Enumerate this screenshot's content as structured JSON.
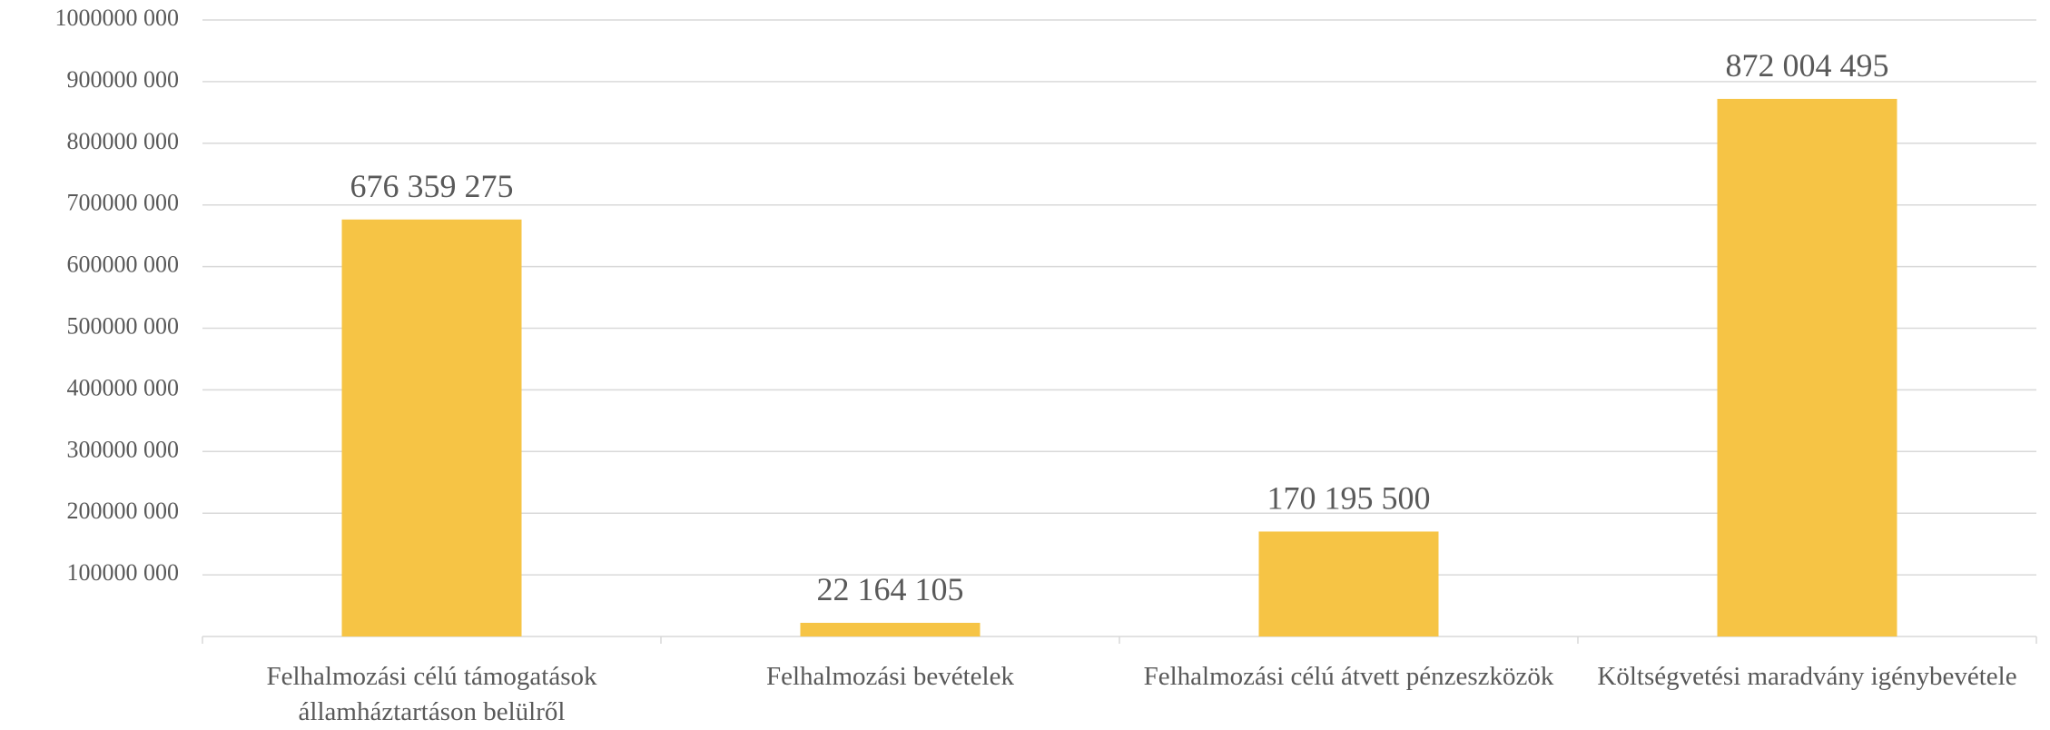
{
  "chart_data": {
    "type": "bar",
    "categories": [
      "Felhalmozási célú támogatások államháztartáson belülről",
      "Felhalmozási bevételek",
      "Felhalmozási célú átvett pénzeszközök",
      "Költségvetési maradvány igénybevétele"
    ],
    "values": [
      676359275,
      22164105,
      170195500,
      872004495
    ],
    "value_labels": [
      "676 359 275",
      "22 164 105",
      "170 195 500",
      "872 004 495"
    ],
    "color": "#f6c445",
    "ylim": [
      0,
      1000000000
    ],
    "yticks": [
      {
        "value": 100000000,
        "label": "100000 000"
      },
      {
        "value": 200000000,
        "label": "200000 000"
      },
      {
        "value": 300000000,
        "label": "300000 000"
      },
      {
        "value": 400000000,
        "label": "400000 000"
      },
      {
        "value": 500000000,
        "label": "500000 000"
      },
      {
        "value": 600000000,
        "label": "600000 000"
      },
      {
        "value": 700000000,
        "label": "700000 000"
      },
      {
        "value": 800000000,
        "label": "800000 000"
      },
      {
        "value": 900000000,
        "label": "900000 000"
      },
      {
        "value": 1000000000,
        "label": "1000000 000"
      }
    ],
    "grid": true
  }
}
